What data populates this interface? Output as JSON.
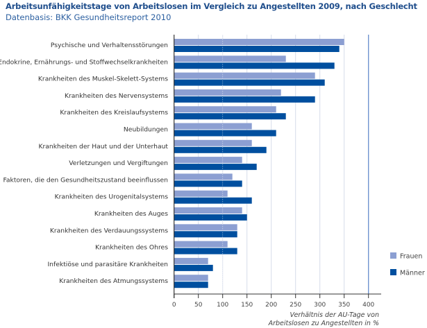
{
  "chart_data": {
    "type": "bar",
    "orientation": "horizontal",
    "title": "Arbeitsunfähigkeitstage von Arbeitslosen im Vergleich zu Angestellten 2009, nach Geschlecht",
    "subtitle": "Datenbasis: BKK Gesundheitsreport 2010",
    "xlabel_line1": "Verhältnis der AU-Tage von",
    "xlabel_line2": "Arbeitslosen zu Angestellten in %",
    "ylabel": "",
    "xlim": [
      0,
      400
    ],
    "xticks": [
      0,
      50,
      100,
      150,
      200,
      250,
      300,
      350,
      400
    ],
    "reference_line": 400,
    "grid": true,
    "legend_position": "right",
    "categories": [
      "Psychische und Verhaltensstörungen",
      "Endokrine, Ernährungs- und Stoffwechselkrankheiten",
      "Krankheiten des Muskel-Skelett-Systems",
      "Krankheiten des Nervensystems",
      "Krankheiten des Kreislaufsystems",
      "Neubildungen",
      "Krankheiten der Haut und der Unterhaut",
      "Verletzungen und Vergiftungen",
      "Faktoren, die den Gesundheitszustand beeinflussen",
      "Krankheiten des Urogenitalsystems",
      "Krankheiten des Auges",
      "Krankheiten des Verdauungssystems",
      "Krankheiten des Ohres",
      "Infektiöse und parasitäre Krankheiten",
      "Krankheiten des Atmungssystems"
    ],
    "series": [
      {
        "name": "Frauen",
        "color": "#8c9fd2",
        "values": [
          350,
          230,
          290,
          220,
          210,
          160,
          160,
          140,
          120,
          110,
          140,
          130,
          110,
          70,
          70
        ]
      },
      {
        "name": "Männer",
        "color": "#004f9f",
        "values": [
          340,
          330,
          310,
          290,
          230,
          210,
          190,
          170,
          140,
          160,
          150,
          130,
          130,
          80,
          70
        ]
      }
    ]
  },
  "colors": {
    "title": "#1f4e8c",
    "gridline": "#d6dcea",
    "reference_line": "#6f93cf",
    "axis": "#333333"
  }
}
